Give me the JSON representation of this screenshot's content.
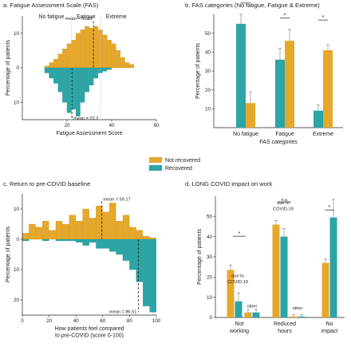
{
  "legend": {
    "items": [
      {
        "name": "Not recovered",
        "color": "#E6A82B"
      },
      {
        "name": "Recovered",
        "color": "#2BA5A5"
      }
    ]
  },
  "chart_data": [
    {
      "id": "a",
      "type": "bar",
      "title": "a. Fatigue Assessment Scale (FAS)",
      "xlabel": "Fatigue Assessment Score",
      "ylabel": "Percentage of patients",
      "xticks": [
        "20",
        "40",
        "60"
      ],
      "xlim": [
        0,
        60
      ],
      "yticks_up": [
        "10",
        "0"
      ],
      "yticks_down": [
        "10"
      ],
      "ylim": [
        -15,
        15
      ],
      "region_labels": [
        "No fatigue",
        "Fatigue",
        "Extreme"
      ],
      "bin_edges": [
        10,
        12,
        14,
        16,
        18,
        20,
        22,
        24,
        26,
        28,
        30,
        32,
        34,
        36,
        38,
        40,
        42,
        44,
        46,
        48,
        50
      ],
      "series": [
        {
          "name": "Not recovered",
          "color": "#E6A82B",
          "values": [
            0.5,
            1.5,
            2.5,
            4,
            5.5,
            7,
            8,
            10,
            11,
            12,
            11.5,
            12,
            11,
            9.5,
            8,
            7,
            5,
            3,
            1.5,
            1
          ]
        },
        {
          "name": "Recovered",
          "color": "#2BA5A5",
          "values": [
            -1.5,
            -3,
            -4.5,
            -7,
            -10,
            -13,
            -12,
            -14,
            -10,
            -7,
            -5,
            -3,
            -1.5,
            -1,
            -0.5,
            0,
            0,
            0,
            0,
            0
          ]
        }
      ],
      "means": [
        {
          "value": 31.82,
          "text": "mean = 31.82"
        },
        {
          "value": 22.2,
          "text": "mean = 22.2"
        }
      ],
      "thresholds": [
        22,
        35
      ]
    },
    {
      "id": "b",
      "type": "bar",
      "title": "b. FAS categories (No fatigue, Fatigue & Extreme)",
      "xlabel": "FAS categories",
      "ylabel": "Percentage of patients",
      "categories": [
        "No fatigue",
        "Fatigue",
        "Extreme"
      ],
      "ylim": [
        0,
        60
      ],
      "yticks": [
        "10",
        "20",
        "30",
        "40",
        "50"
      ],
      "series": [
        {
          "name": "Recovered",
          "color": "#2BA5A5",
          "values": [
            55,
            36,
            9
          ],
          "errors": [
            5,
            6,
            3
          ]
        },
        {
          "name": "Not recovered",
          "color": "#E6A82B",
          "values": [
            13,
            46,
            41
          ],
          "errors": [
            6,
            6,
            3
          ]
        }
      ],
      "significance": [
        "*",
        "*",
        "*"
      ]
    },
    {
      "id": "c",
      "type": "bar",
      "title": "c. Return to pre-COVID baseline",
      "xlabel": "How patients feel compared\nto pre-COVID (score 0-100)",
      "ylabel": "Percentage of patients",
      "xticks": [
        "0",
        "20",
        "40",
        "60",
        "80",
        "100"
      ],
      "xlim": [
        0,
        100
      ],
      "yticks_up": [
        "10",
        "0"
      ],
      "yticks_down": [
        "10",
        "20"
      ],
      "ylim": [
        -25,
        15
      ],
      "bin_edges": [
        0,
        5,
        10,
        15,
        20,
        25,
        30,
        35,
        40,
        45,
        50,
        55,
        60,
        65,
        70,
        75,
        80,
        85,
        90,
        95,
        100
      ],
      "series": [
        {
          "name": "Not recovered",
          "color": "#E6A82B",
          "values": [
            2,
            5,
            4,
            6,
            3,
            6,
            5,
            8,
            6,
            10,
            7,
            11,
            9,
            12,
            6,
            8,
            4,
            3,
            1,
            0.5
          ]
        },
        {
          "name": "Recovered",
          "color": "#2BA5A5",
          "values": [
            -0.5,
            0,
            0,
            -0.5,
            0,
            -0.5,
            -0.5,
            -0.5,
            -1,
            -2,
            -1,
            -3,
            -3,
            -4,
            -5,
            -7,
            -10,
            -14,
            -22,
            -24
          ]
        }
      ],
      "means": [
        {
          "value": 59.17,
          "text": "mean = 59.17"
        },
        {
          "value": 86.51,
          "text": "mean = 86.51"
        }
      ]
    },
    {
      "id": "d",
      "type": "bar",
      "title": "d. LONG COVID impact on work",
      "xlabel": "",
      "ylabel": "Percentage of patients",
      "categories": [
        "Not\nworking",
        "Reduced\nhours",
        "No\nimpact"
      ],
      "ylim": [
        0,
        60
      ],
      "yticks": [
        "0",
        "10",
        "20",
        "30",
        "40",
        "50"
      ],
      "bars": [
        {
          "color": "#E6A82B",
          "value": 23.5,
          "error": 2.5,
          "group": 0,
          "offset": -11
        },
        {
          "color": "#2BA5A5",
          "value": 8,
          "error": 4,
          "group": 0,
          "offset": -1
        },
        {
          "color": "#E6A82B",
          "value": 2.5,
          "error": 1.5,
          "group": 0,
          "offset": 11
        },
        {
          "color": "#2BA5A5",
          "value": 2.5,
          "error": 1.5,
          "group": 0,
          "offset": 21
        },
        {
          "color": "#E6A82B",
          "value": 46,
          "error": 2,
          "group": 1,
          "offset": -11
        },
        {
          "color": "#2BA5A5",
          "value": 40,
          "error": 4,
          "group": 1,
          "offset": -1
        },
        {
          "color": "#E6A82B",
          "value": 0.5,
          "error": 1,
          "group": 1,
          "offset": 11
        },
        {
          "color": "#2BA5A5",
          "value": 0.5,
          "error": 1,
          "group": 1,
          "offset": 21
        },
        {
          "color": "#E6A82B",
          "value": 27,
          "error": 2,
          "group": 2,
          "offset": -5
        },
        {
          "color": "#2BA5A5",
          "value": 49.5,
          "error": 9,
          "group": 2,
          "offset": 5
        }
      ],
      "annotations": [
        {
          "text": "*",
          "group": 0,
          "y": 41
        },
        {
          "text": "due to",
          "group": 0,
          "y": 20
        },
        {
          "text": "COVID-19",
          "group": 0,
          "y": 17
        },
        {
          "text": "other",
          "group": 0,
          "y": 5
        },
        {
          "text": "n.s.",
          "group": 1,
          "y": 58
        },
        {
          "text": "due to",
          "group": 1,
          "y": 56
        },
        {
          "text": "COVID-19",
          "group": 1,
          "y": 53
        },
        {
          "text": "other",
          "group": 1,
          "y": 4
        },
        {
          "text": "*",
          "group": 2,
          "y": 54
        }
      ]
    }
  ]
}
